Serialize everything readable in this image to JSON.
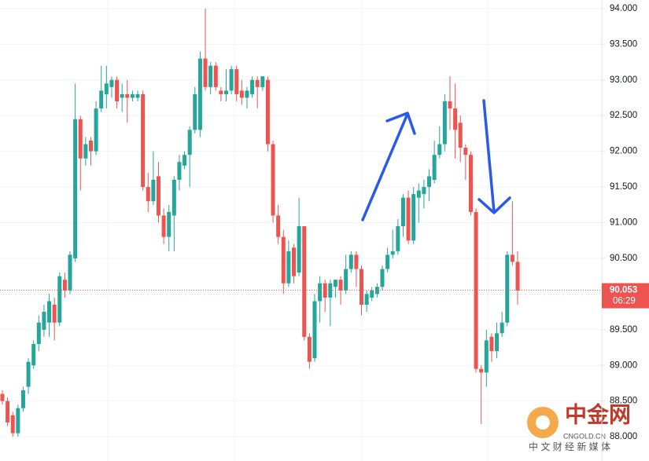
{
  "chart_data": {
    "type": "candlestick",
    "up_color": "#26a69a",
    "down_color": "#ef5350",
    "open": [
      88.6,
      88.5,
      88.3,
      88.05,
      88.4,
      88.7,
      89.0,
      89.3,
      89.5,
      89.6,
      89.85,
      89.6,
      90.2,
      90.05,
      90.5,
      92.45,
      91.9,
      92.15,
      92.0,
      92.6,
      92.8,
      92.9,
      93.0,
      92.75,
      92.8,
      92.75,
      92.75,
      92.8,
      91.5,
      91.3,
      91.65,
      91.1,
      90.8,
      91.1,
      91.6,
      91.8,
      91.95,
      92.3,
      92.3,
      93.3,
      92.9,
      93.2,
      92.85,
      92.8,
      92.85,
      93.15,
      92.85,
      92.75,
      92.8,
      93.0,
      92.9,
      93.0,
      92.1,
      91.1,
      90.8,
      90.15,
      90.65,
      90.3,
      90.95,
      89.4,
      89.1,
      89.9,
      90.15,
      89.95,
      90.1,
      90.2,
      90.05,
      90.35,
      90.55,
      90.35,
      89.85,
      89.95,
      90.0,
      90.1,
      90.35,
      90.55,
      90.6,
      90.95,
      91.35,
      90.75,
      91.35,
      91.4,
      91.5,
      91.6,
      91.95,
      92.1,
      92.7,
      92.6,
      92.4,
      92.05,
      91.95,
      91.15,
      88.95,
      88.9,
      89.4,
      89.2,
      89.45,
      89.6,
      90.55,
      90.45
    ],
    "high": [
      88.65,
      88.55,
      88.35,
      88.45,
      88.7,
      89.1,
      89.35,
      89.7,
      89.85,
      90.0,
      89.95,
      90.3,
      90.3,
      90.6,
      92.95,
      92.5,
      92.2,
      92.2,
      92.7,
      93.2,
      93.2,
      93.05,
      93.05,
      92.95,
      93.0,
      92.85,
      92.85,
      92.85,
      91.7,
      92.0,
      91.85,
      91.2,
      91.25,
      91.65,
      91.95,
      92.0,
      92.35,
      92.9,
      93.4,
      94.0,
      93.25,
      93.25,
      92.9,
      93.15,
      93.2,
      93.2,
      93.0,
      92.9,
      93.05,
      93.05,
      93.05,
      93.05,
      92.15,
      91.25,
      90.9,
      90.75,
      90.7,
      91.35,
      90.95,
      89.45,
      90.0,
      90.25,
      90.2,
      90.2,
      90.2,
      90.25,
      90.55,
      90.6,
      90.6,
      90.4,
      90.05,
      90.1,
      90.15,
      90.4,
      90.65,
      90.9,
      91.05,
      91.4,
      91.45,
      91.5,
      91.55,
      91.6,
      91.75,
      92.15,
      92.35,
      92.8,
      93.05,
      92.95,
      92.5,
      92.1,
      92.0,
      91.2,
      89.0,
      89.5,
      89.45,
      89.6,
      89.75,
      90.6,
      91.3,
      90.6
    ],
    "low": [
      88.45,
      88.15,
      88.0,
      88.0,
      88.35,
      88.6,
      88.95,
      89.2,
      89.4,
      89.4,
      89.35,
      89.55,
      89.95,
      90.0,
      90.45,
      91.45,
      91.8,
      91.8,
      91.95,
      92.55,
      92.6,
      92.75,
      92.6,
      92.55,
      92.4,
      92.7,
      92.7,
      91.45,
      91.15,
      91.25,
      91.0,
      90.7,
      90.6,
      90.6,
      91.45,
      91.75,
      91.5,
      92.25,
      92.2,
      92.85,
      92.8,
      92.85,
      92.7,
      92.7,
      92.8,
      92.7,
      92.65,
      92.6,
      92.75,
      92.6,
      92.85,
      92.0,
      91.0,
      90.7,
      90.0,
      90.1,
      90.15,
      90.25,
      89.35,
      88.95,
      89.05,
      89.6,
      89.75,
      89.55,
      89.95,
      89.85,
      90.0,
      90.3,
      90.1,
      89.7,
      89.75,
      89.9,
      89.95,
      90.05,
      90.3,
      90.5,
      90.55,
      90.8,
      90.7,
      90.7,
      91.0,
      91.2,
      91.3,
      91.55,
      91.9,
      92.0,
      92.3,
      91.9,
      91.85,
      91.6,
      91.1,
      88.9,
      88.18,
      88.7,
      89.05,
      89.1,
      89.4,
      89.55,
      90.4,
      89.85
    ],
    "close": [
      88.5,
      88.2,
      88.05,
      88.4,
      88.65,
      89.05,
      89.3,
      89.6,
      89.75,
      89.9,
      89.6,
      90.25,
      90.05,
      90.55,
      92.45,
      91.9,
      92.1,
      92.0,
      92.6,
      92.85,
      92.95,
      93.0,
      92.7,
      92.8,
      92.75,
      92.8,
      92.8,
      91.5,
      91.3,
      91.6,
      91.1,
      90.8,
      91.15,
      91.6,
      91.85,
      91.95,
      92.3,
      92.8,
      93.3,
      92.9,
      93.2,
      92.9,
      92.8,
      92.85,
      93.15,
      92.8,
      92.75,
      92.85,
      93.0,
      92.9,
      93.05,
      92.1,
      91.1,
      90.8,
      90.15,
      90.6,
      90.25,
      90.95,
      89.4,
      89.05,
      89.9,
      90.15,
      89.95,
      90.15,
      90.2,
      90.05,
      90.35,
      90.55,
      90.35,
      89.85,
      90.0,
      90.05,
      90.1,
      90.35,
      90.55,
      90.6,
      90.95,
      91.35,
      90.75,
      91.4,
      91.45,
      91.5,
      91.65,
      91.95,
      92.1,
      92.7,
      92.6,
      92.3,
      92.05,
      91.95,
      91.15,
      88.95,
      88.9,
      89.35,
      89.2,
      89.45,
      89.6,
      90.55,
      90.45,
      90.05
    ],
    "ylim": [
      87.66,
      94.12
    ],
    "yticks": [
      {
        "value": 88.0,
        "label": "88.000"
      },
      {
        "value": 88.5,
        "label": "88.500"
      },
      {
        "value": 89.0,
        "label": "89.000"
      },
      {
        "value": 89.5,
        "label": "89.500"
      },
      {
        "value": 90.0,
        "label": "90.000"
      },
      {
        "value": 90.5,
        "label": "90.500"
      },
      {
        "value": 91.0,
        "label": "91.000"
      },
      {
        "value": 91.5,
        "label": "91.500"
      },
      {
        "value": 92.0,
        "label": "92.000"
      },
      {
        "value": 92.5,
        "label": "92.500"
      },
      {
        "value": 93.0,
        "label": "93.000"
      },
      {
        "value": 93.5,
        "label": "93.500"
      },
      {
        "value": 94.0,
        "label": "94.000"
      }
    ],
    "grid": true,
    "last_price": 90.053,
    "countdown": "06:29",
    "last_price_color": "#ef5350"
  },
  "watermark": {
    "name": "中金网",
    "domain": "CNGOLD.CN",
    "slogan": "中 文 财 经 新 媒 体"
  }
}
